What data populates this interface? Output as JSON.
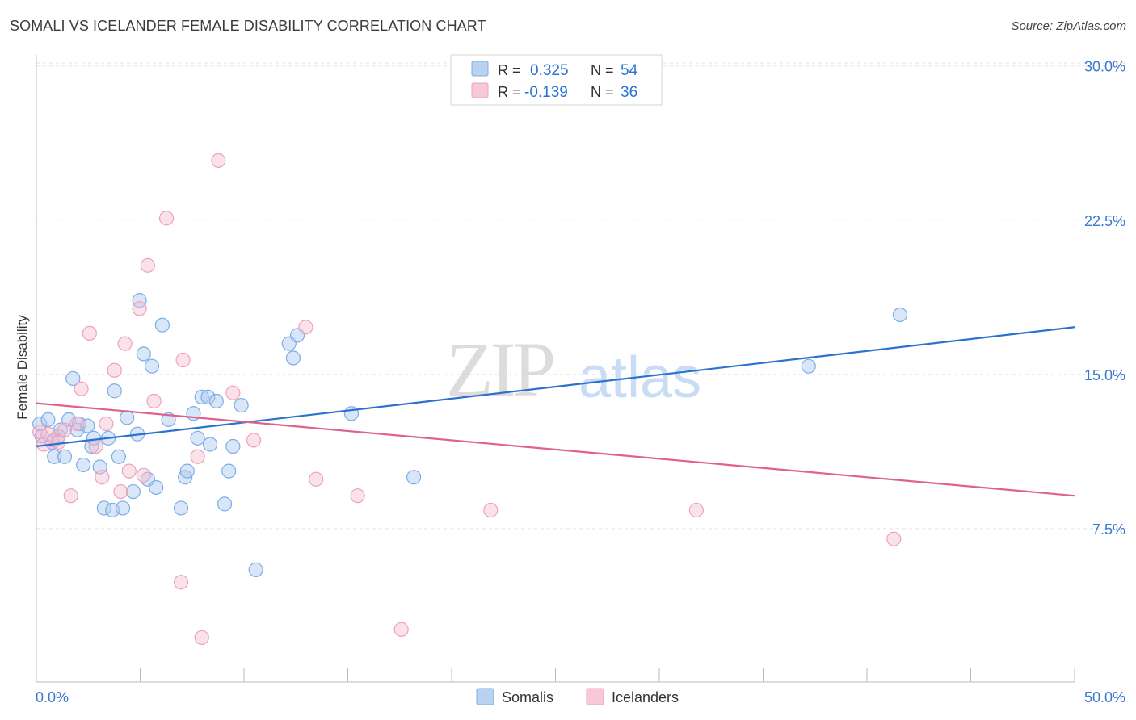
{
  "title": "SOMALI VS ICELANDER FEMALE DISABILITY CORRELATION CHART",
  "source": "Source: ZipAtlas.com",
  "watermark": {
    "zip": "ZIP",
    "atlas": "atlas"
  },
  "colors": {
    "somali": "#7aaee8",
    "somali_line": "#2a72d0",
    "icelander": "#f0a0ba",
    "icelander_line": "#e0608e",
    "axis_label": "#3a78cc",
    "grid": "#e2e2e2"
  },
  "legend_top": [
    {
      "r_label": "R =",
      "r_value": "0.325",
      "n_label": "N =",
      "n_value": "54"
    },
    {
      "r_label": "R =",
      "r_value": "-0.139",
      "n_label": "N =",
      "n_value": "36"
    }
  ],
  "legend_bottom": [
    "Somalis",
    "Icelanders"
  ],
  "chart_data": {
    "type": "scatter",
    "title": "SOMALI VS ICELANDER FEMALE DISABILITY CORRELATION CHART",
    "xlabel": "",
    "ylabel": "Female Disability",
    "xlim": [
      0,
      50
    ],
    "ylim": [
      0,
      31.5
    ],
    "x_tick_labels": [
      "0.0%",
      "50.0%"
    ],
    "y_ticks": [
      7.5,
      15.0,
      22.5,
      30.0
    ],
    "y_tick_labels": [
      "7.5%",
      "15.0%",
      "22.5%",
      "30.0%"
    ],
    "grid": true,
    "legend_position": "top-center",
    "series": [
      {
        "name": "Somalis",
        "r": 0.325,
        "n": 54,
        "trend": {
          "x0": 0,
          "y0": 11.5,
          "x1": 50,
          "y1": 17.3
        },
        "points": [
          [
            0.2,
            12.6
          ],
          [
            0.3,
            12.0
          ],
          [
            0.6,
            12.8
          ],
          [
            0.8,
            11.7
          ],
          [
            0.9,
            11.0
          ],
          [
            1.1,
            12.0
          ],
          [
            1.2,
            12.3
          ],
          [
            1.4,
            11.0
          ],
          [
            1.6,
            12.8
          ],
          [
            1.8,
            14.8
          ],
          [
            2.0,
            12.3
          ],
          [
            2.1,
            12.6
          ],
          [
            2.3,
            10.6
          ],
          [
            2.5,
            12.5
          ],
          [
            2.7,
            11.5
          ],
          [
            2.8,
            11.9
          ],
          [
            3.1,
            10.5
          ],
          [
            3.3,
            8.5
          ],
          [
            3.5,
            11.9
          ],
          [
            3.7,
            8.4
          ],
          [
            3.8,
            14.2
          ],
          [
            4.0,
            11.0
          ],
          [
            4.2,
            8.5
          ],
          [
            4.4,
            12.9
          ],
          [
            4.7,
            9.3
          ],
          [
            4.9,
            12.1
          ],
          [
            5.0,
            18.6
          ],
          [
            5.2,
            16.0
          ],
          [
            5.4,
            9.9
          ],
          [
            5.6,
            15.4
          ],
          [
            5.8,
            9.5
          ],
          [
            6.1,
            17.4
          ],
          [
            6.4,
            12.8
          ],
          [
            7.0,
            8.5
          ],
          [
            7.2,
            10.0
          ],
          [
            7.3,
            10.3
          ],
          [
            7.6,
            13.1
          ],
          [
            7.8,
            11.9
          ],
          [
            8.0,
            13.9
          ],
          [
            8.3,
            13.9
          ],
          [
            8.4,
            11.6
          ],
          [
            8.7,
            13.7
          ],
          [
            9.1,
            8.7
          ],
          [
            9.3,
            10.3
          ],
          [
            9.5,
            11.5
          ],
          [
            9.9,
            13.5
          ],
          [
            10.6,
            5.5
          ],
          [
            12.2,
            16.5
          ],
          [
            12.4,
            15.8
          ],
          [
            12.6,
            16.9
          ],
          [
            15.2,
            13.1
          ],
          [
            18.2,
            10.0
          ],
          [
            37.2,
            15.4
          ],
          [
            41.6,
            17.9
          ]
        ]
      },
      {
        "name": "Icelanders",
        "r": -0.139,
        "n": 36,
        "trend": {
          "x0": 0,
          "y0": 13.6,
          "x1": 50,
          "y1": 9.1
        },
        "points": [
          [
            0.2,
            12.2
          ],
          [
            0.4,
            11.6
          ],
          [
            0.6,
            12.1
          ],
          [
            0.9,
            11.8
          ],
          [
            1.1,
            11.7
          ],
          [
            1.4,
            12.3
          ],
          [
            1.7,
            9.1
          ],
          [
            2.0,
            12.6
          ],
          [
            2.2,
            14.3
          ],
          [
            2.6,
            17.0
          ],
          [
            2.9,
            11.5
          ],
          [
            3.2,
            10.0
          ],
          [
            3.4,
            12.6
          ],
          [
            3.8,
            15.2
          ],
          [
            4.1,
            9.3
          ],
          [
            4.3,
            16.5
          ],
          [
            4.5,
            10.3
          ],
          [
            5.0,
            18.2
          ],
          [
            5.2,
            10.1
          ],
          [
            5.4,
            20.3
          ],
          [
            5.7,
            13.7
          ],
          [
            6.3,
            22.6
          ],
          [
            7.0,
            4.9
          ],
          [
            7.1,
            15.7
          ],
          [
            7.8,
            11.0
          ],
          [
            8.0,
            2.2
          ],
          [
            8.8,
            25.4
          ],
          [
            9.5,
            14.1
          ],
          [
            10.5,
            11.8
          ],
          [
            13.0,
            17.3
          ],
          [
            13.5,
            9.9
          ],
          [
            15.5,
            9.1
          ],
          [
            17.6,
            2.6
          ],
          [
            21.9,
            8.4
          ],
          [
            31.8,
            8.4
          ],
          [
            41.3,
            7.0
          ]
        ]
      }
    ]
  }
}
